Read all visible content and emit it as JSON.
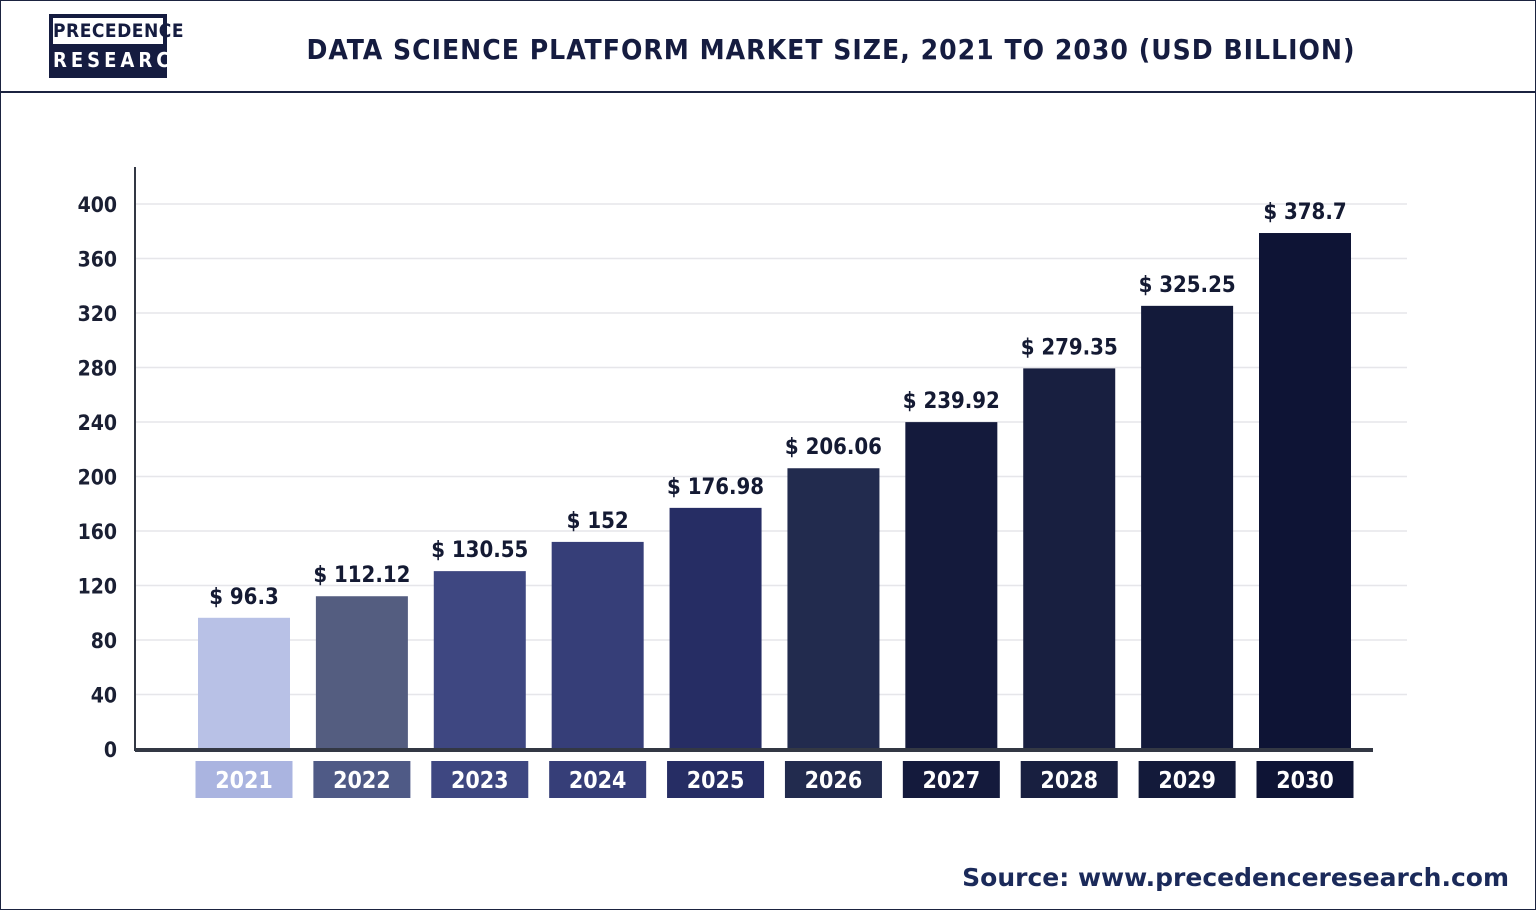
{
  "logo": {
    "line1": "PRECEDENCE",
    "line2": "RESEARCH"
  },
  "header": {
    "title": "DATA SCIENCE PLATFORM MARKET SIZE, 2021 TO 2030 (USD BILLION)"
  },
  "source": "Source: www.precedenceresearch.com",
  "chart_data": {
    "type": "bar",
    "title": "DATA SCIENCE PLATFORM MARKET SIZE, 2021 TO 2030 (USD BILLION)",
    "xlabel": "",
    "ylabel": "",
    "categories": [
      "2021",
      "2022",
      "2023",
      "2024",
      "2025",
      "2026",
      "2027",
      "2028",
      "2029",
      "2030"
    ],
    "values": [
      96.3,
      112.12,
      130.55,
      152,
      176.98,
      206.06,
      239.92,
      279.35,
      325.25,
      378.7
    ],
    "value_labels": [
      "$ 96.3",
      "$ 112.12",
      "$ 130.55",
      "$ 152",
      "$ 176.98",
      "$ 206.06",
      "$ 239.92",
      "$ 279.35",
      "$ 325.25",
      "$ 378.7"
    ],
    "ylim": [
      0,
      400
    ],
    "yticks": [
      0,
      40,
      80,
      120,
      160,
      200,
      240,
      280,
      320,
      360,
      400
    ],
    "grid": true,
    "colors": [
      "#b8c1e6",
      "#545d80",
      "#3e4781",
      "#363e78",
      "#262d64",
      "#222b4e",
      "#141a3c",
      "#181f40",
      "#131a3a",
      "#0e1435"
    ],
    "category_label_colors": [
      "#aab4e0",
      "#4f5a86",
      "#3e4781",
      "#363e78",
      "#262d64",
      "#222b4e",
      "#141a3c",
      "#181f40",
      "#131a3a",
      "#0e1435"
    ]
  }
}
